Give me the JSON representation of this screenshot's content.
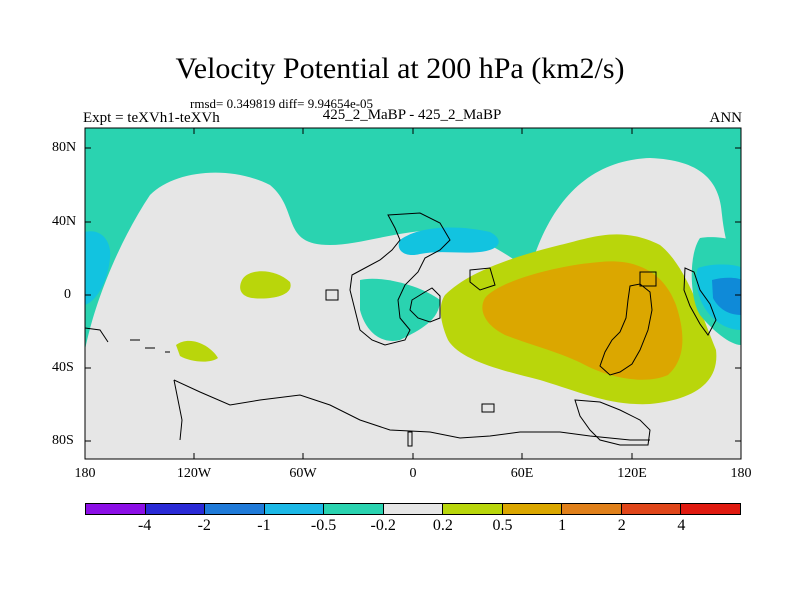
{
  "title": "Velocity Potential at 200 hPa (km2/s)",
  "stats": "rmsd= 0.349819 diff= 9.94654e-05",
  "left_label": "Expt = teXVh1-teXVh",
  "center_label": "425_2_MaBP - 425_2_MaBP",
  "right_label": "ANN",
  "colors": {
    "neg_strong": "#0a2fd6",
    "neg_mid": "#0f8ad8",
    "neg_light": "#12c3e0",
    "neg_faint": "#2ad3b0",
    "zero": "#e6e6e6",
    "pos_faint": "#b9d60b",
    "pos_light": "#dba700"
  },
  "map": {
    "y_ticks": [
      "80N",
      "40N",
      "0",
      "40S",
      "80S"
    ],
    "x_ticks": [
      "180",
      "120W",
      "60W",
      "0",
      "60E",
      "120E",
      "180"
    ]
  },
  "colorbar": {
    "colors": [
      "#8c0fe6",
      "#2a2ad6",
      "#1f7ad8",
      "#1cb8e6",
      "#2ad3b0",
      "#e6e6e6",
      "#b9d60b",
      "#dba700",
      "#e0801a",
      "#e0461a",
      "#e01a10"
    ],
    "labels": [
      "-4",
      "-2",
      "-1",
      "-0.5",
      "-0.2",
      "0.2",
      "0.5",
      "1",
      "2",
      "4"
    ]
  }
}
